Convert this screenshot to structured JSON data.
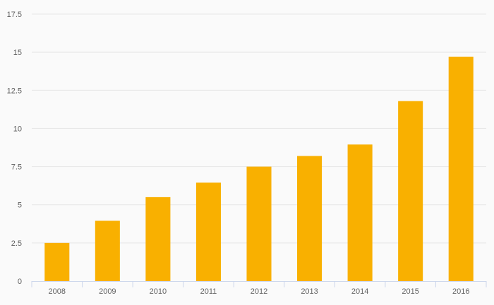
{
  "chart_data": {
    "type": "bar",
    "categories": [
      "2008",
      "2009",
      "2010",
      "2011",
      "2012",
      "2013",
      "2014",
      "2015",
      "2016"
    ],
    "values": [
      2.5,
      3.95,
      5.5,
      6.45,
      7.5,
      8.2,
      8.95,
      11.8,
      14.7
    ],
    "title": "",
    "xlabel": "",
    "ylabel": "",
    "ylim": [
      0,
      17.5
    ],
    "yticks": [
      "0",
      "2.5",
      "5",
      "7.5",
      "10",
      "12.5",
      "15",
      "17.5"
    ],
    "grid": true,
    "legend": "none",
    "colors": {
      "bar": "#f9b000",
      "grid": "#e6e6e6",
      "axis": "#ccd6eb",
      "text": "#606060",
      "background": "#fafafa"
    }
  }
}
